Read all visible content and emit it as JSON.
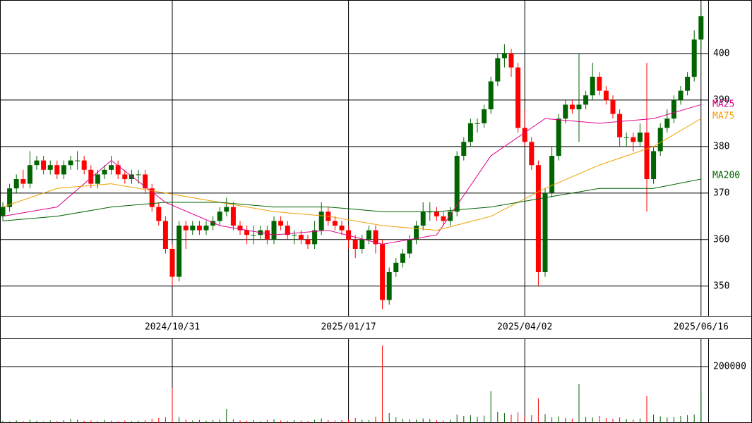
{
  "chart_data": {
    "type": "candlestick",
    "categories": [
      null,
      null,
      null,
      null,
      null,
      null,
      null,
      null,
      null,
      null,
      null,
      null,
      null,
      null,
      null,
      null,
      null,
      null,
      null,
      null,
      null,
      null,
      null,
      null,
      null,
      "2024/10/31",
      null,
      null,
      null,
      null,
      null,
      null,
      null,
      null,
      null,
      null,
      null,
      null,
      null,
      null,
      null,
      null,
      null,
      null,
      null,
      null,
      null,
      null,
      null,
      null,
      null,
      "2025/01/17",
      null,
      null,
      null,
      null,
      null,
      null,
      null,
      null,
      null,
      null,
      null,
      null,
      null,
      null,
      null,
      null,
      null,
      null,
      null,
      null,
      null,
      null,
      null,
      null,
      null,
      "2025/04/02",
      null,
      null,
      null,
      null,
      null,
      null,
      null,
      null,
      null,
      null,
      null,
      null,
      null,
      null,
      null,
      null,
      null,
      null,
      null,
      null,
      null,
      null,
      null,
      null,
      null,
      "2025/06/16"
    ],
    "open": [
      365,
      367,
      371,
      373,
      372,
      376,
      377,
      375,
      376,
      374,
      376,
      377,
      377,
      375,
      372,
      374,
      375,
      376,
      374,
      373,
      374,
      374,
      371,
      367,
      364,
      358,
      352,
      363,
      362,
      363,
      362,
      363,
      364,
      366,
      367,
      363,
      362,
      361,
      361,
      362,
      360,
      364,
      363,
      361,
      361,
      360,
      359,
      362,
      366,
      364,
      363,
      362,
      360,
      358,
      360,
      362,
      359,
      347,
      353,
      355,
      357,
      360,
      363,
      366,
      366,
      365,
      364,
      366,
      378,
      381,
      385,
      385,
      388,
      394,
      399,
      400,
      397,
      384,
      381,
      376,
      353,
      370,
      378,
      386,
      389,
      388,
      389,
      391,
      395,
      392,
      390,
      387,
      382,
      382,
      381,
      383,
      373,
      379,
      384,
      386,
      390,
      392,
      395,
      403
    ],
    "high": [
      368,
      372,
      374,
      375,
      379,
      378,
      378,
      377,
      377,
      377,
      378,
      379,
      378,
      376,
      375,
      376,
      378,
      377,
      375,
      375,
      375,
      375,
      372,
      368,
      365,
      359,
      364,
      364,
      364,
      364,
      364,
      365,
      367,
      369,
      368,
      364,
      363,
      363,
      363,
      363,
      365,
      365,
      364,
      362,
      362,
      361,
      364,
      368,
      367,
      365,
      364,
      363,
      361,
      361,
      363,
      363,
      360,
      354,
      356,
      358,
      361,
      364,
      368,
      368,
      367,
      366,
      367,
      379,
      382,
      386,
      386,
      389,
      395,
      400,
      402,
      401,
      398,
      388,
      382,
      377,
      371,
      380,
      387,
      390,
      390,
      400,
      392,
      398,
      396,
      393,
      391,
      388,
      383,
      383,
      385,
      398,
      380,
      385,
      388,
      391,
      393,
      396,
      405,
      410
    ],
    "low": [
      364,
      366,
      370,
      371,
      371,
      375,
      374,
      374,
      373,
      373,
      375,
      375,
      374,
      371,
      371,
      373,
      374,
      373,
      372,
      372,
      372,
      370,
      366,
      363,
      357,
      350,
      351,
      358,
      361,
      361,
      361,
      362,
      363,
      365,
      362,
      361,
      359,
      359,
      360,
      359,
      359,
      362,
      360,
      359,
      359,
      358,
      358,
      361,
      363,
      362,
      361,
      358,
      356,
      357,
      359,
      357,
      345,
      346,
      352,
      354,
      356,
      359,
      362,
      364,
      364,
      363,
      363,
      365,
      377,
      380,
      383,
      384,
      387,
      393,
      397,
      395,
      383,
      380,
      375,
      350,
      352,
      369,
      377,
      385,
      387,
      381,
      388,
      390,
      391,
      389,
      386,
      380,
      380,
      379,
      380,
      366,
      372,
      378,
      383,
      385,
      389,
      391,
      394,
      401
    ],
    "close": [
      367,
      371,
      373,
      372,
      376,
      377,
      375,
      376,
      374,
      376,
      377,
      377,
      375,
      372,
      374,
      375,
      376,
      374,
      373,
      374,
      374,
      371,
      367,
      364,
      358,
      352,
      363,
      362,
      363,
      362,
      363,
      364,
      366,
      367,
      363,
      362,
      361,
      361,
      362,
      360,
      364,
      363,
      361,
      361,
      360,
      359,
      362,
      366,
      364,
      363,
      362,
      360,
      358,
      360,
      362,
      359,
      347,
      353,
      355,
      357,
      360,
      363,
      366,
      366,
      365,
      364,
      366,
      378,
      381,
      385,
      385,
      388,
      394,
      399,
      400,
      397,
      384,
      381,
      376,
      353,
      370,
      378,
      386,
      389,
      388,
      389,
      391,
      395,
      392,
      390,
      387,
      382,
      382,
      381,
      383,
      373,
      379,
      384,
      386,
      390,
      392,
      395,
      403,
      408
    ],
    "up_color": "#006400",
    "down_color": "#ff0000",
    "ylim": [
      343.6,
      411.5
    ],
    "yticks": [
      350,
      360,
      370,
      380,
      390,
      400
    ],
    "ma_series": [
      {
        "name": "MA25",
        "color": "#e0008a",
        "x": [
          0,
          8,
          16,
          24,
          32,
          40,
          48,
          56,
          64,
          72,
          80,
          88,
          96,
          103
        ],
        "values": [
          365,
          367,
          377,
          368,
          363,
          361,
          362,
          359,
          361,
          378,
          386,
          385,
          386,
          389
        ]
      },
      {
        "name": "MA75",
        "color": "#f0a000",
        "x": [
          0,
          8,
          16,
          24,
          32,
          40,
          48,
          56,
          64,
          72,
          80,
          88,
          96,
          103
        ],
        "values": [
          367,
          371,
          372,
          370,
          368,
          366,
          365,
          363,
          362,
          365,
          371,
          376,
          380,
          386
        ]
      },
      {
        "name": "MA200",
        "color": "#006400",
        "x": [
          0,
          8,
          16,
          24,
          32,
          40,
          48,
          56,
          64,
          72,
          80,
          88,
          96,
          103
        ],
        "values": [
          364,
          365,
          367,
          368,
          368,
          367,
          367,
          366,
          366,
          367,
          369,
          371,
          371,
          373
        ]
      }
    ],
    "volume": {
      "values": [
        8000,
        6000,
        9000,
        7000,
        12000,
        8000,
        6000,
        9000,
        7000,
        10000,
        14000,
        12000,
        8000,
        9000,
        7000,
        11000,
        8000,
        6000,
        9000,
        7000,
        8000,
        10000,
        15000,
        18000,
        20000,
        125000,
        22000,
        12000,
        9000,
        11000,
        8000,
        10000,
        12000,
        50000,
        14000,
        9000,
        8000,
        10000,
        7000,
        11000,
        13000,
        9000,
        8000,
        10000,
        9000,
        7000,
        12000,
        16000,
        10000,
        9000,
        11000,
        14000,
        18000,
        12000,
        10000,
        22000,
        275000,
        35000,
        20000,
        15000,
        13000,
        12000,
        16000,
        14000,
        10000,
        9000,
        12000,
        30000,
        25000,
        28000,
        22000,
        26000,
        112500,
        40000,
        35000,
        30000,
        38000,
        25000,
        28000,
        87500,
        32000,
        20000,
        24000,
        18000,
        15000,
        137500,
        22000,
        20000,
        25000,
        18000,
        15000,
        20000,
        14000,
        12000,
        16000,
        95000,
        30000,
        24000,
        20000,
        22000,
        25000,
        28000,
        30000,
        117500
      ],
      "ylim": [
        0,
        300000
      ],
      "yticks": [
        200000
      ]
    }
  }
}
